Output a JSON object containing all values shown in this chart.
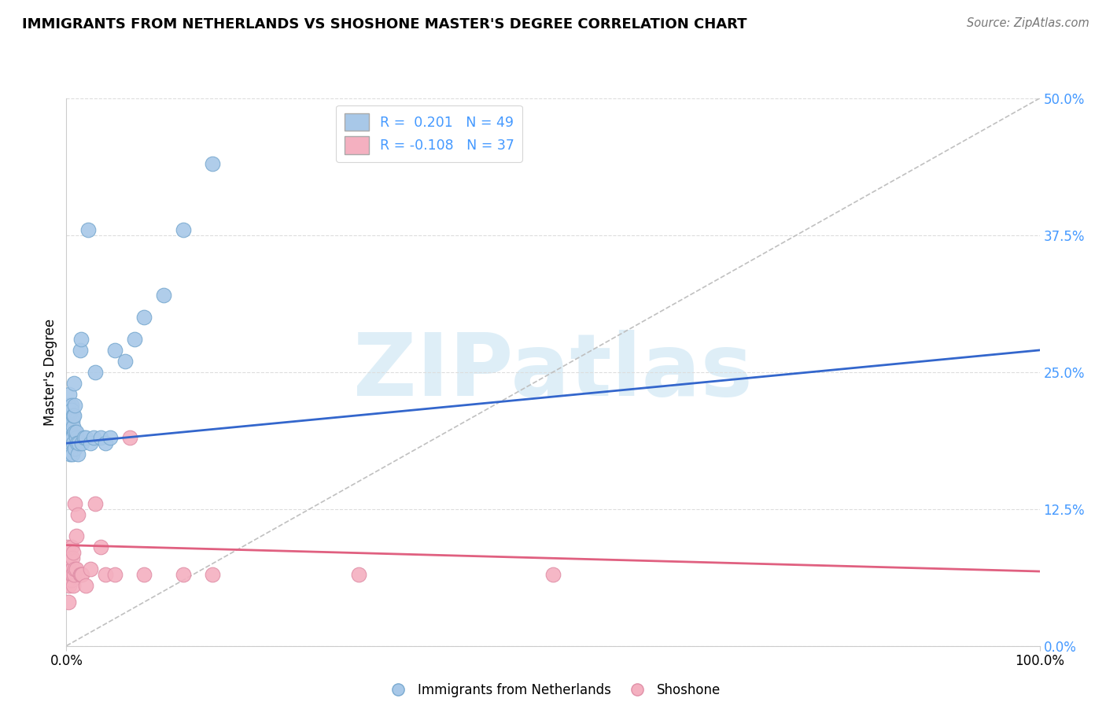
{
  "title": "IMMIGRANTS FROM NETHERLANDS VS SHOSHONE MASTER'S DEGREE CORRELATION CHART",
  "source": "Source: ZipAtlas.com",
  "ylabel": "Master's Degree",
  "blue_R": 0.201,
  "blue_N": 49,
  "pink_R": -0.108,
  "pink_N": 37,
  "blue_color": "#a8c8e8",
  "pink_color": "#f4b0c0",
  "blue_edge_color": "#7aaad0",
  "pink_edge_color": "#e090a8",
  "blue_line_color": "#3366cc",
  "pink_line_color": "#e06080",
  "trendline_gray_color": "#c0c0c0",
  "watermark_color": "#d0e8f5",
  "ytick_values": [
    0.0,
    0.125,
    0.25,
    0.375,
    0.5
  ],
  "ytick_labels": [
    "0.0%",
    "12.5%",
    "25.0%",
    "37.5%",
    "50.0%"
  ],
  "xlim": [
    0.0,
    1.0
  ],
  "ylim": [
    0.0,
    0.5
  ],
  "blue_trendline": [
    0.0,
    1.0,
    0.185,
    0.27
  ],
  "pink_trendline": [
    0.0,
    1.0,
    0.092,
    0.068
  ],
  "gray_trendline": [
    0.0,
    1.0,
    0.0,
    0.5
  ],
  "legend_label_blue": "Immigrants from Netherlands",
  "legend_label_pink": "Shoshone",
  "blue_x": [
    0.001,
    0.001,
    0.002,
    0.002,
    0.003,
    0.003,
    0.003,
    0.004,
    0.004,
    0.004,
    0.005,
    0.005,
    0.005,
    0.005,
    0.006,
    0.006,
    0.006,
    0.007,
    0.007,
    0.007,
    0.008,
    0.008,
    0.009,
    0.009,
    0.009,
    0.01,
    0.01,
    0.011,
    0.012,
    0.013,
    0.014,
    0.015,
    0.016,
    0.018,
    0.02,
    0.022,
    0.025,
    0.028,
    0.03,
    0.035,
    0.04,
    0.045,
    0.05,
    0.06,
    0.07,
    0.08,
    0.1,
    0.12,
    0.15
  ],
  "blue_y": [
    0.19,
    0.21,
    0.22,
    0.18,
    0.195,
    0.21,
    0.23,
    0.19,
    0.175,
    0.2,
    0.22,
    0.19,
    0.2,
    0.215,
    0.175,
    0.19,
    0.205,
    0.2,
    0.21,
    0.185,
    0.21,
    0.24,
    0.195,
    0.18,
    0.22,
    0.19,
    0.195,
    0.185,
    0.175,
    0.185,
    0.27,
    0.28,
    0.185,
    0.19,
    0.19,
    0.38,
    0.185,
    0.19,
    0.25,
    0.19,
    0.185,
    0.19,
    0.27,
    0.26,
    0.28,
    0.3,
    0.32,
    0.38,
    0.44
  ],
  "pink_x": [
    0.001,
    0.001,
    0.002,
    0.002,
    0.003,
    0.003,
    0.004,
    0.004,
    0.005,
    0.005,
    0.005,
    0.006,
    0.006,
    0.006,
    0.007,
    0.007,
    0.008,
    0.009,
    0.009,
    0.01,
    0.01,
    0.012,
    0.014,
    0.015,
    0.016,
    0.02,
    0.025,
    0.03,
    0.035,
    0.04,
    0.05,
    0.065,
    0.08,
    0.12,
    0.15,
    0.3,
    0.5
  ],
  "pink_y": [
    0.07,
    0.09,
    0.04,
    0.06,
    0.07,
    0.055,
    0.08,
    0.065,
    0.06,
    0.09,
    0.065,
    0.07,
    0.08,
    0.065,
    0.055,
    0.085,
    0.065,
    0.07,
    0.13,
    0.07,
    0.1,
    0.12,
    0.065,
    0.065,
    0.065,
    0.055,
    0.07,
    0.13,
    0.09,
    0.065,
    0.065,
    0.19,
    0.065,
    0.065,
    0.065,
    0.065,
    0.065
  ]
}
